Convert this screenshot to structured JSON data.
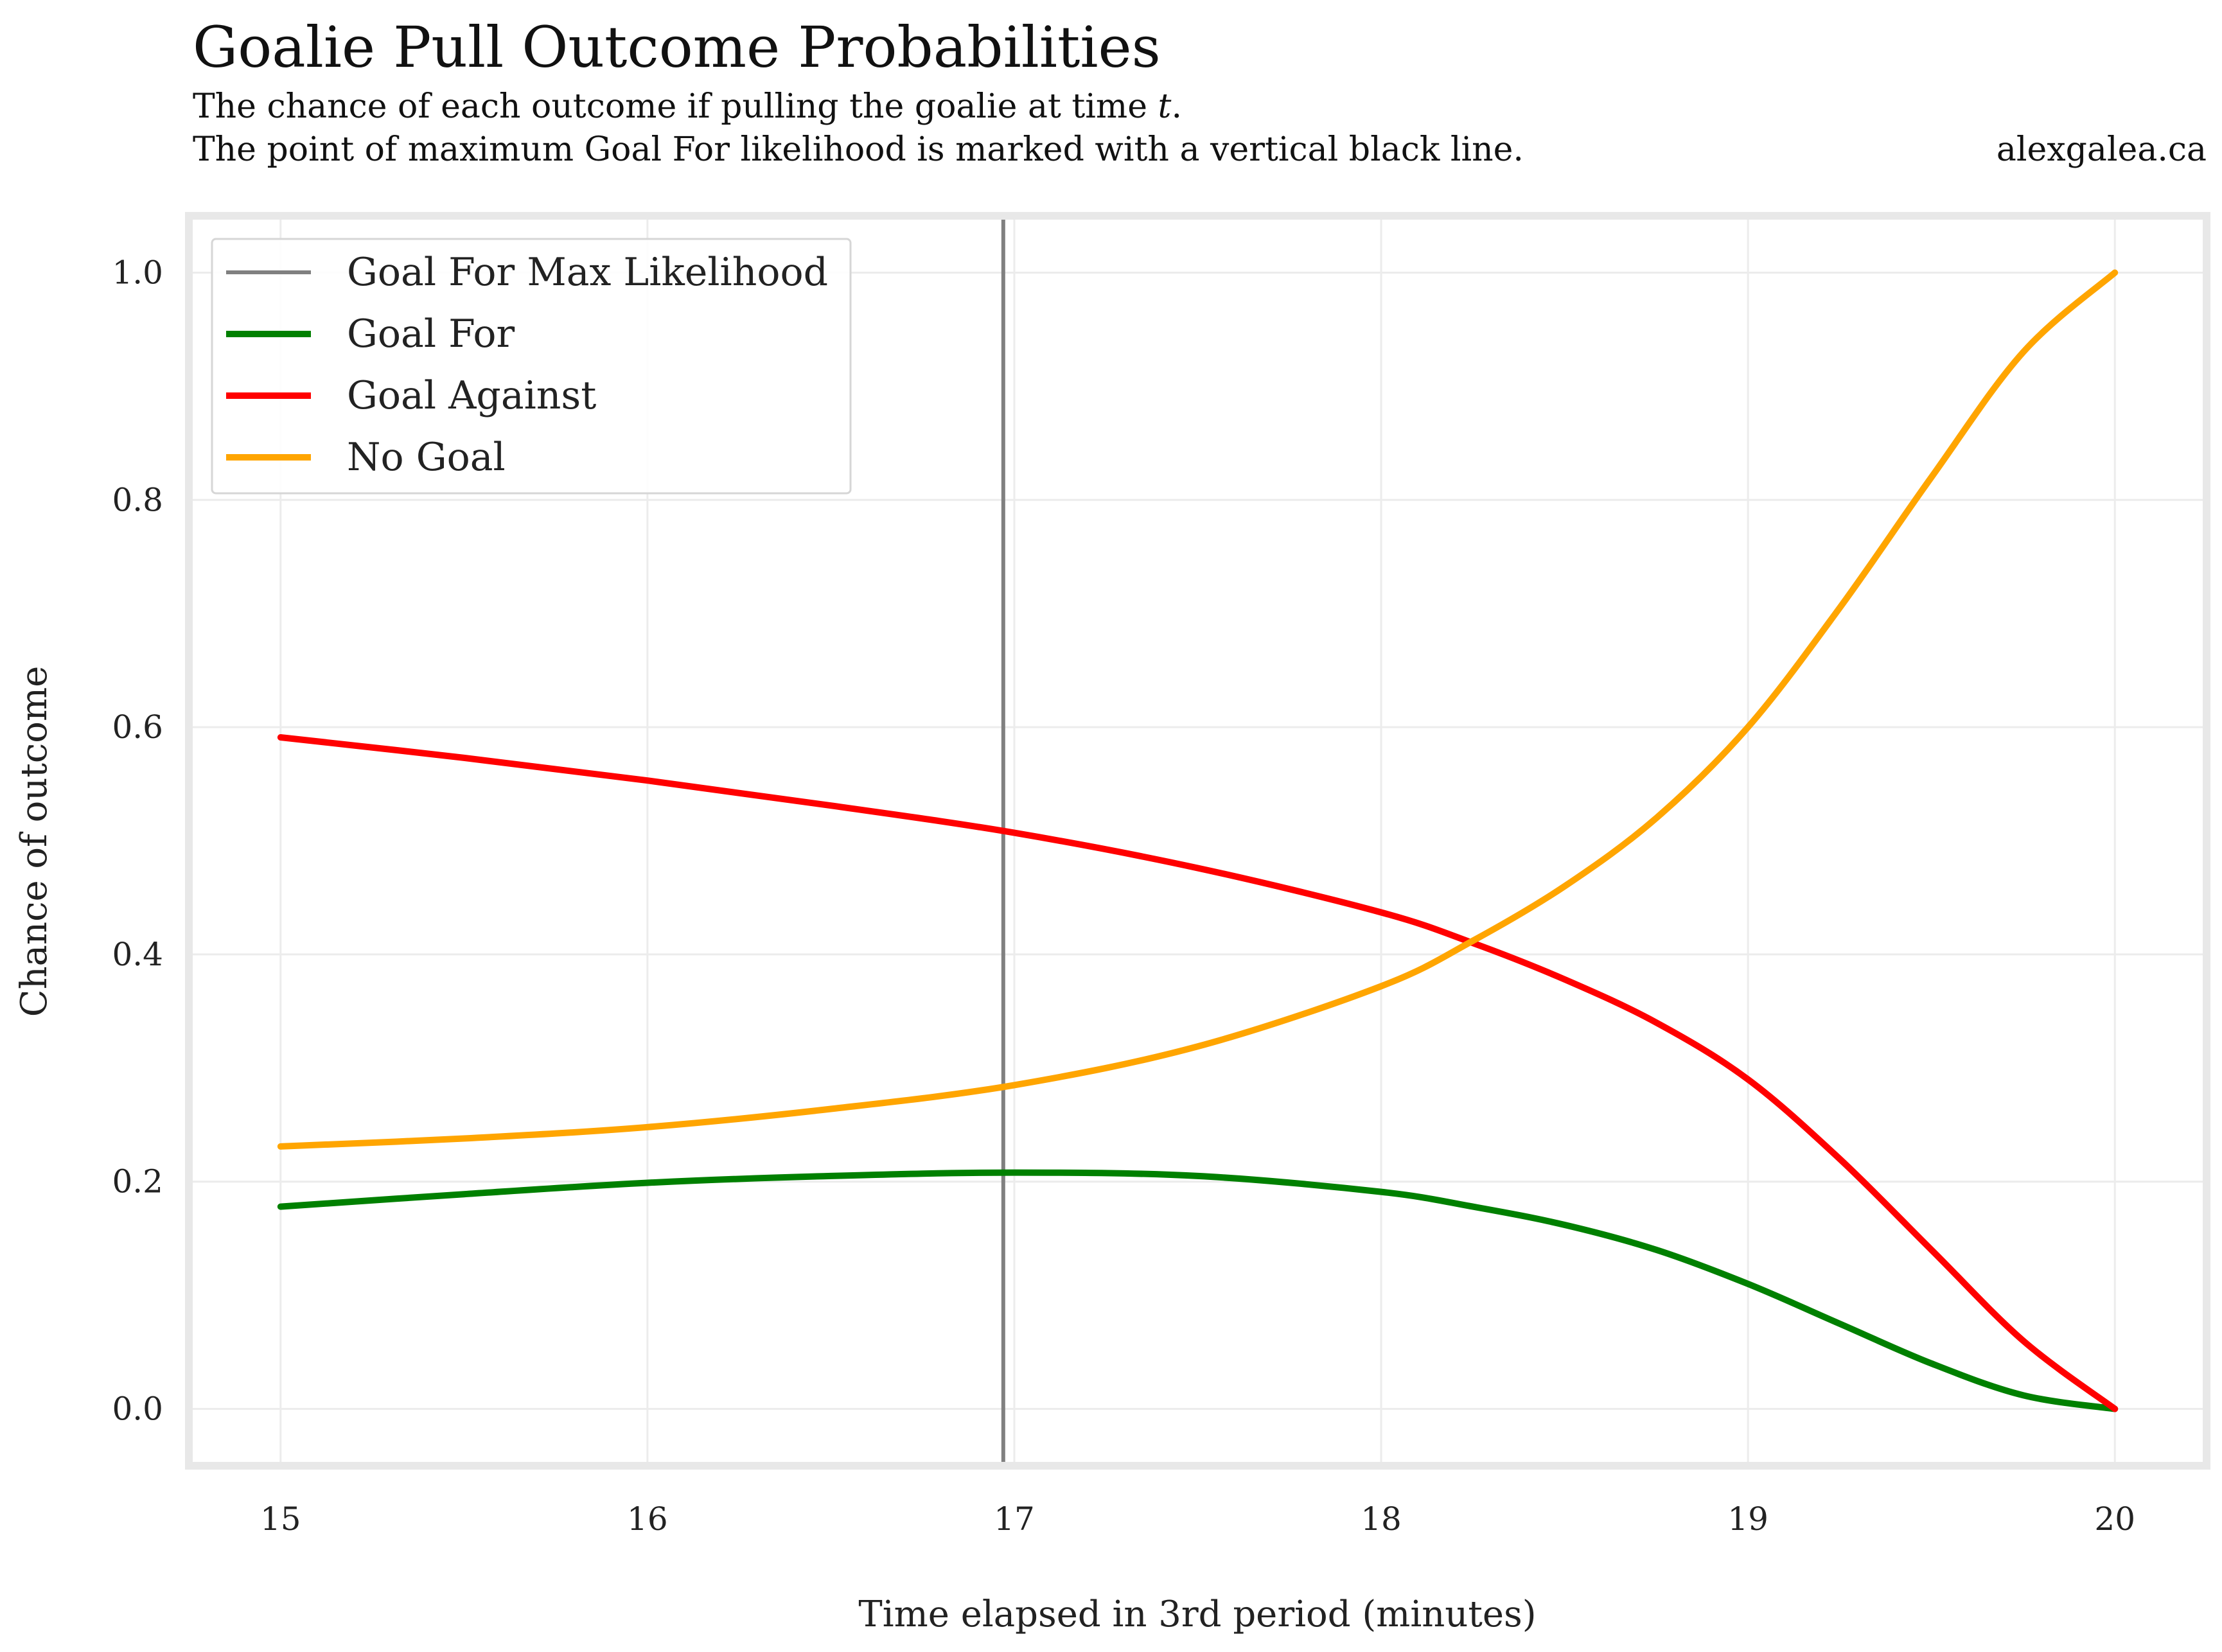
{
  "title": "Goalie Pull Outcome Probabilities",
  "subtitle_line1_prefix": "The chance of each outcome if pulling the goalie at time ",
  "subtitle_line1_var": "t",
  "subtitle_line1_suffix": ".",
  "subtitle_line2": "The point of maximum Goal For likelihood is marked with a vertical black line.",
  "source": "alexgalea.ca",
  "chart_data": {
    "type": "line",
    "title": "Goalie Pull Outcome Probabilities",
    "xlabel": "Time elapsed in 3rd period (minutes)",
    "ylabel": "Chance of outcome",
    "xlim": [
      14.75,
      20.25
    ],
    "ylim": [
      -0.05,
      1.05
    ],
    "x_ticks": [
      15,
      16,
      17,
      18,
      19,
      20
    ],
    "y_ticks": [
      0.0,
      0.2,
      0.4,
      0.6,
      0.8,
      1.0
    ],
    "x_tick_labels": [
      "15",
      "16",
      "17",
      "18",
      "19",
      "20"
    ],
    "y_tick_labels": [
      "0.0",
      "0.2",
      "0.4",
      "0.6",
      "0.8",
      "1.0"
    ],
    "grid": true,
    "legend_position": "upper-left",
    "vline": {
      "name": "Goal For Max Likelihood",
      "x": 16.97,
      "color": "#808080"
    },
    "x": [
      15.0,
      15.5,
      16.0,
      16.5,
      17.0,
      17.5,
      18.0,
      18.25,
      18.5,
      18.75,
      19.0,
      19.25,
      19.5,
      19.75,
      20.0
    ],
    "series": [
      {
        "name": "Goal For",
        "color": "#008000",
        "values": [
          0.178,
          0.189,
          0.199,
          0.205,
          0.208,
          0.205,
          0.191,
          0.178,
          0.162,
          0.14,
          0.11,
          0.075,
          0.04,
          0.012,
          0.0
        ]
      },
      {
        "name": "Goal Against",
        "color": "#ff0000",
        "values": [
          0.591,
          0.573,
          0.553,
          0.531,
          0.507,
          0.476,
          0.437,
          0.41,
          0.378,
          0.34,
          0.29,
          0.22,
          0.14,
          0.06,
          0.0
        ]
      },
      {
        "name": "No Goal",
        "color": "#ffa500",
        "values": [
          0.231,
          0.238,
          0.248,
          0.264,
          0.285,
          0.319,
          0.372,
          0.412,
          0.46,
          0.52,
          0.6,
          0.705,
          0.82,
          0.93,
          1.0
        ]
      }
    ]
  }
}
